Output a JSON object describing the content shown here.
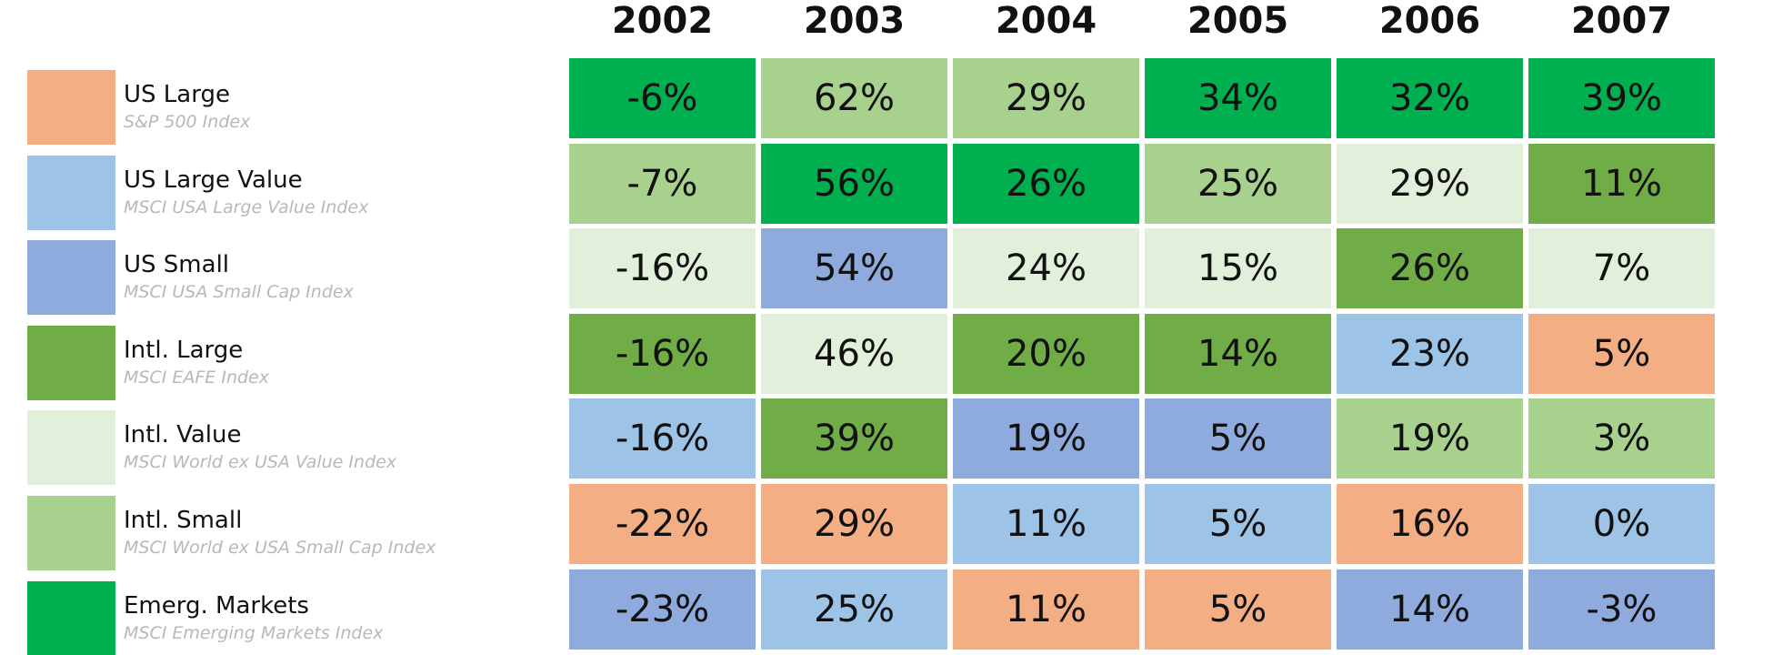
{
  "legend": [
    {
      "name": "US Large",
      "index": "S&P 500 Index",
      "color": "#f4ae84"
    },
    {
      "name": "US Large Value",
      "index": "MSCI USA Large Value Index",
      "color": "#9dc3e6"
    },
    {
      "name": "US Small",
      "index": "MSCI USA Small Cap Index",
      "color": "#8faadc"
    },
    {
      "name": "Intl. Large",
      "index": "MSCI EAFE Index",
      "color": "#70ad47"
    },
    {
      "name": "Intl. Value",
      "index": "MSCI World ex USA Value Index",
      "color": "#e2efda"
    },
    {
      "name": "Intl. Small",
      "index": "MSCI World ex USA Small Cap Index",
      "color": "#a9d18e"
    },
    {
      "name": "Emerg. Markets",
      "index": "MSCI Emerging Markets Index",
      "color": "#00b050"
    }
  ],
  "columns": [
    {
      "year": "2002",
      "cells": [
        {
          "text": "-6%",
          "color": "#00b050"
        },
        {
          "text": "-7%",
          "color": "#a9d18e"
        },
        {
          "text": "-16%",
          "color": "#e2efda"
        },
        {
          "text": "-16%",
          "color": "#70ad47"
        },
        {
          "text": "-16%",
          "color": "#9dc3e6"
        },
        {
          "text": "-22%",
          "color": "#f4ae84"
        },
        {
          "text": "-23%",
          "color": "#8faadc"
        }
      ]
    },
    {
      "year": "2003",
      "cells": [
        {
          "text": "62%",
          "color": "#a9d18e"
        },
        {
          "text": "56%",
          "color": "#00b050"
        },
        {
          "text": "54%",
          "color": "#8faadc"
        },
        {
          "text": "46%",
          "color": "#e2efda"
        },
        {
          "text": "39%",
          "color": "#70ad47"
        },
        {
          "text": "29%",
          "color": "#f4ae84"
        },
        {
          "text": "25%",
          "color": "#9dc3e6"
        }
      ]
    },
    {
      "year": "2004",
      "cells": [
        {
          "text": "29%",
          "color": "#a9d18e"
        },
        {
          "text": "26%",
          "color": "#00b050"
        },
        {
          "text": "24%",
          "color": "#e2efda"
        },
        {
          "text": "20%",
          "color": "#70ad47"
        },
        {
          "text": "19%",
          "color": "#8faadc"
        },
        {
          "text": "11%",
          "color": "#9dc3e6"
        },
        {
          "text": "11%",
          "color": "#f4ae84"
        }
      ]
    },
    {
      "year": "2005",
      "cells": [
        {
          "text": "34%",
          "color": "#00b050"
        },
        {
          "text": "25%",
          "color": "#a9d18e"
        },
        {
          "text": "15%",
          "color": "#e2efda"
        },
        {
          "text": "14%",
          "color": "#70ad47"
        },
        {
          "text": "5%",
          "color": "#8faadc"
        },
        {
          "text": "5%",
          "color": "#9dc3e6"
        },
        {
          "text": "5%",
          "color": "#f4ae84"
        }
      ]
    },
    {
      "year": "2006",
      "cells": [
        {
          "text": "32%",
          "color": "#00b050"
        },
        {
          "text": "29%",
          "color": "#e2efda"
        },
        {
          "text": "26%",
          "color": "#70ad47"
        },
        {
          "text": "23%",
          "color": "#9dc3e6"
        },
        {
          "text": "19%",
          "color": "#a9d18e"
        },
        {
          "text": "16%",
          "color": "#f4ae84"
        },
        {
          "text": "14%",
          "color": "#8faadc"
        }
      ]
    },
    {
      "year": "2007",
      "cells": [
        {
          "text": "39%",
          "color": "#00b050"
        },
        {
          "text": "11%",
          "color": "#70ad47"
        },
        {
          "text": "7%",
          "color": "#e2efda"
        },
        {
          "text": "5%",
          "color": "#f4ae84"
        },
        {
          "text": "3%",
          "color": "#a9d18e"
        },
        {
          "text": "0%",
          "color": "#9dc3e6"
        },
        {
          "text": "-3%",
          "color": "#8faadc"
        }
      ]
    }
  ]
}
